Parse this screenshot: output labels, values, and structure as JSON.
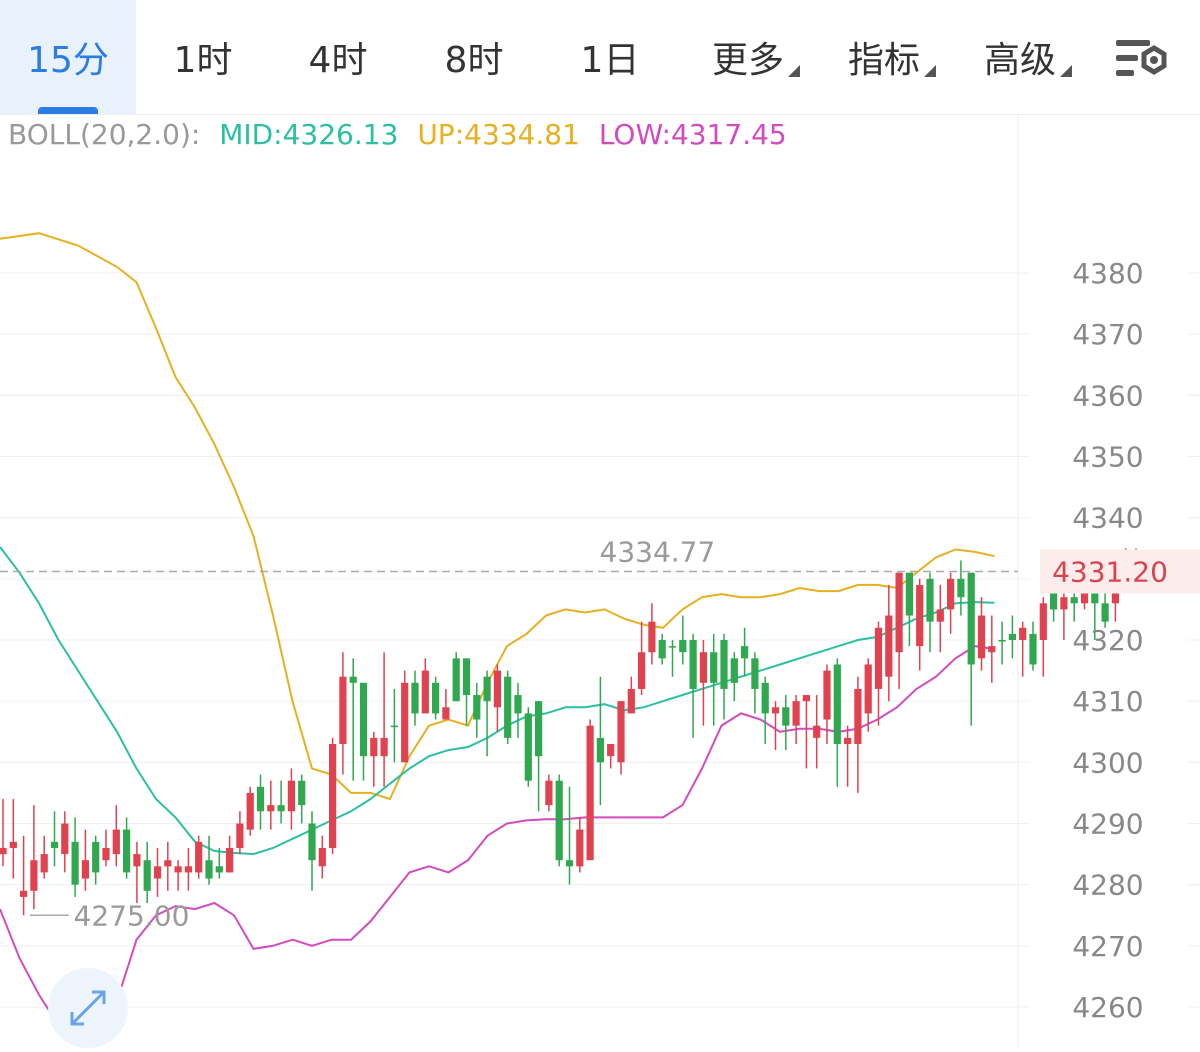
{
  "tabs": [
    {
      "label": "15分",
      "active": true
    },
    {
      "label": "1时",
      "active": false
    },
    {
      "label": "4时",
      "active": false
    },
    {
      "label": "8时",
      "active": false
    },
    {
      "label": "1日",
      "active": false
    },
    {
      "label": "更多",
      "active": false,
      "dropdown": true
    },
    {
      "label": "指标",
      "active": false,
      "dropdown": true
    },
    {
      "label": "高级",
      "active": false,
      "dropdown": true
    }
  ],
  "settings_icon": "chart-settings-icon",
  "expand_icon": "expand-icon",
  "boll": {
    "name": "BOLL(20,2.0):",
    "mid": "MID:4326.13",
    "up": "UP:4334.81",
    "low": "LOW:4317.45"
  },
  "colors": {
    "accent": "#2a7de1",
    "mid": "#2bbfa4",
    "up": "#e6b020",
    "low": "#d04cc0",
    "rise": "#2fa84f",
    "fall": "#e0434f",
    "price_label": "#d9434d",
    "axis_text": "#888888"
  },
  "chart_data": {
    "type": "candlestick",
    "interval": "15分",
    "ylim": [
      4257,
      4390
    ],
    "yticks": [
      4380,
      4370,
      4360,
      4350,
      4340,
      4330,
      4320,
      4310,
      4300,
      4290,
      4280,
      4270,
      4260
    ],
    "ytick_labels": [
      "4380",
      "4370",
      "4360",
      "4350",
      "4340",
      "",
      "4320",
      "4310",
      "4300",
      "4290",
      "4280",
      "4270",
      "4260"
    ],
    "current_price": 4331.2,
    "current_price_label": "4331.20",
    "high_label": "4334.77",
    "high_value": 4334.77,
    "high_index": 55,
    "low_label": "4275.00",
    "low_value": 4275.0,
    "low_index": 2,
    "candles": [
      [
        4286,
        4285,
        4294,
        4283
      ],
      [
        4287,
        4286,
        4294,
        4281
      ],
      [
        4279,
        4278,
        4288,
        4275
      ],
      [
        4284,
        4279,
        4293,
        4276
      ],
      [
        4285,
        4282,
        4288,
        4281
      ],
      [
        4286,
        4287,
        4292,
        4283
      ],
      [
        4290,
        4285,
        4292,
        4282
      ],
      [
        4280,
        4287,
        4291,
        4278
      ],
      [
        4284,
        4281,
        4289,
        4279
      ],
      [
        4282,
        4287,
        4288,
        4280
      ],
      [
        4286,
        4284,
        4289,
        4283
      ],
      [
        4289,
        4285,
        4293,
        4283
      ],
      [
        4282,
        4289,
        4291,
        4281
      ],
      [
        4285,
        4283,
        4287,
        4277
      ],
      [
        4279,
        4284,
        4287,
        4277
      ],
      [
        4283,
        4281,
        4286,
        4278
      ],
      [
        4284,
        4283,
        4287,
        4279
      ],
      [
        4283,
        4282,
        4284,
        4279
      ],
      [
        4283,
        4282,
        4286,
        4279
      ],
      [
        4287,
        4282,
        4288,
        4281
      ],
      [
        4281,
        4284,
        4288,
        4280
      ],
      [
        4282,
        4283,
        4286,
        4281
      ],
      [
        4286,
        4282,
        4288,
        4282
      ],
      [
        4290,
        4286,
        4292,
        4285
      ],
      [
        4295,
        4289,
        4296,
        4288
      ],
      [
        4292,
        4296,
        4298,
        4289
      ],
      [
        4293,
        4292,
        4297,
        4289
      ],
      [
        4292,
        4293,
        4297,
        4290
      ],
      [
        4297,
        4292,
        4299,
        4289
      ],
      [
        4293,
        4297,
        4298,
        4290
      ],
      [
        4284,
        4290,
        4292,
        4279
      ],
      [
        4286,
        4283,
        4288,
        4281
      ],
      [
        4303,
        4286,
        4304,
        4285
      ],
      [
        4314,
        4303,
        4318,
        4298
      ],
      [
        4313,
        4314,
        4317,
        4297
      ],
      [
        4301,
        4313,
        4313,
        4297
      ],
      [
        4304,
        4301,
        4305,
        4296
      ],
      [
        4304,
        4301,
        4318,
        4296
      ],
      [
        4306,
        4306,
        4312,
        4300
      ],
      [
        4313,
        4300,
        4315,
        4300
      ],
      [
        4308,
        4313,
        4315,
        4306
      ],
      [
        4315,
        4308,
        4317,
        4308
      ],
      [
        4308,
        4313,
        4314,
        4307
      ],
      [
        4309,
        4307,
        4312,
        4307
      ],
      [
        4310,
        4317,
        4318,
        4310
      ],
      [
        4311,
        4317,
        4317,
        4306
      ],
      [
        4307,
        4311,
        4313,
        4304
      ],
      [
        4310,
        4314,
        4315,
        4301
      ],
      [
        4315,
        4309,
        4316,
        4305
      ],
      [
        4304,
        4314,
        4315,
        4303
      ],
      [
        4308,
        4311,
        4313,
        4304
      ],
      [
        4297,
        4308,
        4309,
        4296
      ],
      [
        4301,
        4310,
        4310,
        4292
      ],
      [
        4297,
        4293,
        4298,
        4292
      ],
      [
        4284,
        4297,
        4298,
        4283
      ],
      [
        4283,
        4284,
        4296,
        4280
      ],
      [
        4289,
        4283,
        4291,
        4282
      ],
      [
        4306,
        4284,
        4307,
        4284
      ],
      [
        4300,
        4304,
        4314,
        4293
      ],
      [
        4303,
        4301,
        4303,
        4299
      ],
      [
        4310,
        4300,
        4310,
        4298
      ],
      [
        4312,
        4308,
        4314,
        4308
      ],
      [
        4318,
        4312,
        4323,
        4311
      ],
      [
        4323,
        4318,
        4326,
        4316
      ],
      [
        4317,
        4320,
        4321,
        4316
      ],
      [
        4319,
        4319,
        4320,
        4314
      ],
      [
        4318,
        4320,
        4324,
        4316
      ],
      [
        4312,
        4320,
        4321,
        4304
      ],
      [
        4318,
        4313,
        4320,
        4306
      ],
      [
        4313,
        4318,
        4321,
        4306
      ],
      [
        4312,
        4320,
        4321,
        4307
      ],
      [
        4313,
        4317,
        4318,
        4310
      ],
      [
        4317,
        4319,
        4322,
        4314
      ],
      [
        4312,
        4317,
        4318,
        4308
      ],
      [
        4308,
        4313,
        4314,
        4303
      ],
      [
        4309,
        4308,
        4310,
        4302
      ],
      [
        4306,
        4309,
        4311,
        4302
      ],
      [
        4310,
        4306,
        4311,
        4303
      ],
      [
        4311,
        4310,
        4311,
        4299
      ],
      [
        4306,
        4304,
        4311,
        4299
      ],
      [
        4315,
        4307,
        4316,
        4303
      ],
      [
        4303,
        4316,
        4317,
        4296
      ],
      [
        4304,
        4303,
        4306,
        4296
      ],
      [
        4312,
        4303,
        4314,
        4295
      ],
      [
        4316,
        4308,
        4317,
        4305
      ],
      [
        4322,
        4312,
        4323,
        4306
      ],
      [
        4324,
        4314,
        4329,
        4310
      ],
      [
        4331,
        4318,
        4331,
        4312
      ],
      [
        4324,
        4331,
        4331,
        4319
      ],
      [
        4329,
        4319,
        4330,
        4315
      ],
      [
        4323,
        4330,
        4331,
        4318
      ],
      [
        4325,
        4323,
        4329,
        4318
      ],
      [
        4330,
        4325,
        4331,
        4321
      ],
      [
        4327,
        4330,
        4333,
        4324
      ],
      [
        4316,
        4331,
        4331,
        4306
      ],
      [
        4324,
        4317,
        4327,
        4315
      ],
      [
        4319,
        4318,
        4324,
        4313
      ],
      [
        4320,
        4320,
        4323,
        4316
      ],
      [
        4320,
        4321,
        4324,
        4317
      ],
      [
        4322,
        4320,
        4323,
        4314
      ],
      [
        4316,
        4321,
        4323,
        4315
      ],
      [
        4326,
        4320,
        4327,
        4314
      ],
      [
        4325,
        4328,
        4330,
        4323
      ],
      [
        4327,
        4325,
        4330,
        4320
      ],
      [
        4326,
        4327,
        4329,
        4323
      ],
      [
        4330,
        4326,
        4332,
        4325
      ],
      [
        4326,
        4328,
        4332,
        4320
      ],
      [
        4323,
        4326,
        4328,
        4322
      ],
      [
        4330,
        4326,
        4333,
        4323
      ],
      [
        4334,
        4330,
        4335,
        4328
      ],
      [
        4331,
        4333,
        4335,
        4329
      ]
    ],
    "series": [
      {
        "key": "up",
        "points": [
          [
            0,
            4385.6
          ],
          [
            2,
            4386.5
          ],
          [
            4,
            4384.5
          ],
          [
            6,
            4381
          ],
          [
            7,
            4378.5
          ],
          [
            8,
            4371
          ],
          [
            9,
            4363
          ],
          [
            10,
            4358
          ],
          [
            11,
            4352
          ],
          [
            12,
            4345
          ],
          [
            13,
            4337
          ],
          [
            14,
            4324
          ],
          [
            15,
            4310
          ],
          [
            16,
            4299
          ],
          [
            17,
            4298
          ],
          [
            18,
            4295
          ],
          [
            19,
            4295
          ],
          [
            20,
            4294
          ],
          [
            21,
            4301
          ],
          [
            22,
            4306
          ],
          [
            23,
            4307
          ],
          [
            24,
            4306
          ],
          [
            25,
            4313
          ],
          [
            26,
            4319
          ],
          [
            27,
            4321
          ],
          [
            28,
            4324
          ],
          [
            29,
            4325
          ],
          [
            30,
            4324.5
          ],
          [
            31,
            4325
          ],
          [
            32,
            4323.5
          ],
          [
            33,
            4322.5
          ],
          [
            34,
            4322
          ],
          [
            35,
            4325
          ],
          [
            36,
            4327
          ],
          [
            37,
            4327.5
          ],
          [
            38,
            4327
          ],
          [
            39,
            4327
          ],
          [
            40,
            4327.5
          ],
          [
            41,
            4328.5
          ],
          [
            42,
            4328
          ],
          [
            43,
            4328
          ],
          [
            44,
            4329
          ],
          [
            45,
            4329
          ],
          [
            46,
            4328.5
          ],
          [
            47,
            4331
          ],
          [
            48,
            4333.5
          ],
          [
            49,
            4334.8
          ],
          [
            50,
            4334.4
          ],
          [
            51,
            4333.7
          ]
        ]
      },
      {
        "key": "mid",
        "points": [
          [
            0,
            4335.2
          ],
          [
            1,
            4331
          ],
          [
            2,
            4326
          ],
          [
            3,
            4320
          ],
          [
            4,
            4315
          ],
          [
            5,
            4310
          ],
          [
            6,
            4305
          ],
          [
            7,
            4299
          ],
          [
            8,
            4294
          ],
          [
            9,
            4291
          ],
          [
            10,
            4287
          ],
          [
            11,
            4285.5
          ],
          [
            12,
            4285.2
          ],
          [
            13,
            4285
          ],
          [
            14,
            4286
          ],
          [
            15,
            4287.5
          ],
          [
            16,
            4289
          ],
          [
            17,
            4290.5
          ],
          [
            18,
            4292
          ],
          [
            19,
            4294
          ],
          [
            20,
            4296.5
          ],
          [
            21,
            4299
          ],
          [
            22,
            4301
          ],
          [
            23,
            4302
          ],
          [
            24,
            4302.5
          ],
          [
            25,
            4304
          ],
          [
            26,
            4306
          ],
          [
            27,
            4307.5
          ],
          [
            28,
            4308
          ],
          [
            29,
            4309
          ],
          [
            30,
            4309
          ],
          [
            31,
            4309.5
          ],
          [
            32,
            4308.5
          ],
          [
            33,
            4309
          ],
          [
            34,
            4310
          ],
          [
            35,
            4311
          ],
          [
            36,
            4312
          ],
          [
            37,
            4313
          ],
          [
            38,
            4314
          ],
          [
            39,
            4315
          ],
          [
            40,
            4316
          ],
          [
            41,
            4317
          ],
          [
            42,
            4318
          ],
          [
            43,
            4319
          ],
          [
            44,
            4320
          ],
          [
            45,
            4320.5
          ],
          [
            46,
            4322
          ],
          [
            47,
            4323.5
          ],
          [
            48,
            4324.5
          ],
          [
            49,
            4326
          ],
          [
            50,
            4326.2
          ],
          [
            51,
            4326.1
          ]
        ]
      },
      {
        "key": "low",
        "points": [
          [
            0,
            4276
          ],
          [
            1,
            4268
          ],
          [
            2,
            4262
          ],
          [
            3,
            4257
          ],
          [
            4,
            4257
          ],
          [
            5,
            4258
          ],
          [
            6,
            4261
          ],
          [
            7,
            4271
          ],
          [
            8,
            4275
          ],
          [
            9,
            4276.5
          ],
          [
            10,
            4276
          ],
          [
            11,
            4277
          ],
          [
            12,
            4275
          ],
          [
            13,
            4269.5
          ],
          [
            14,
            4270
          ],
          [
            15,
            4271
          ],
          [
            16,
            4270
          ],
          [
            17,
            4271
          ],
          [
            18,
            4271
          ],
          [
            19,
            4274
          ],
          [
            20,
            4278
          ],
          [
            21,
            4282
          ],
          [
            22,
            4283
          ],
          [
            23,
            4282
          ],
          [
            24,
            4284
          ],
          [
            25,
            4288
          ],
          [
            26,
            4290
          ],
          [
            27,
            4290.5
          ],
          [
            28,
            4290.7
          ],
          [
            29,
            4290.7
          ],
          [
            30,
            4291
          ],
          [
            31,
            4291
          ],
          [
            32,
            4291
          ],
          [
            33,
            4291
          ],
          [
            34,
            4291
          ],
          [
            35,
            4293
          ],
          [
            36,
            4299
          ],
          [
            37,
            4306
          ],
          [
            38,
            4308
          ],
          [
            39,
            4307
          ],
          [
            40,
            4305
          ],
          [
            41,
            4305.5
          ],
          [
            42,
            4305.5
          ],
          [
            43,
            4305
          ],
          [
            44,
            4305.5
          ],
          [
            45,
            4307
          ],
          [
            46,
            4309
          ],
          [
            47,
            4312
          ],
          [
            48,
            4314
          ],
          [
            49,
            4317
          ],
          [
            50,
            4319
          ],
          [
            51,
            4318.5
          ]
        ]
      }
    ]
  }
}
